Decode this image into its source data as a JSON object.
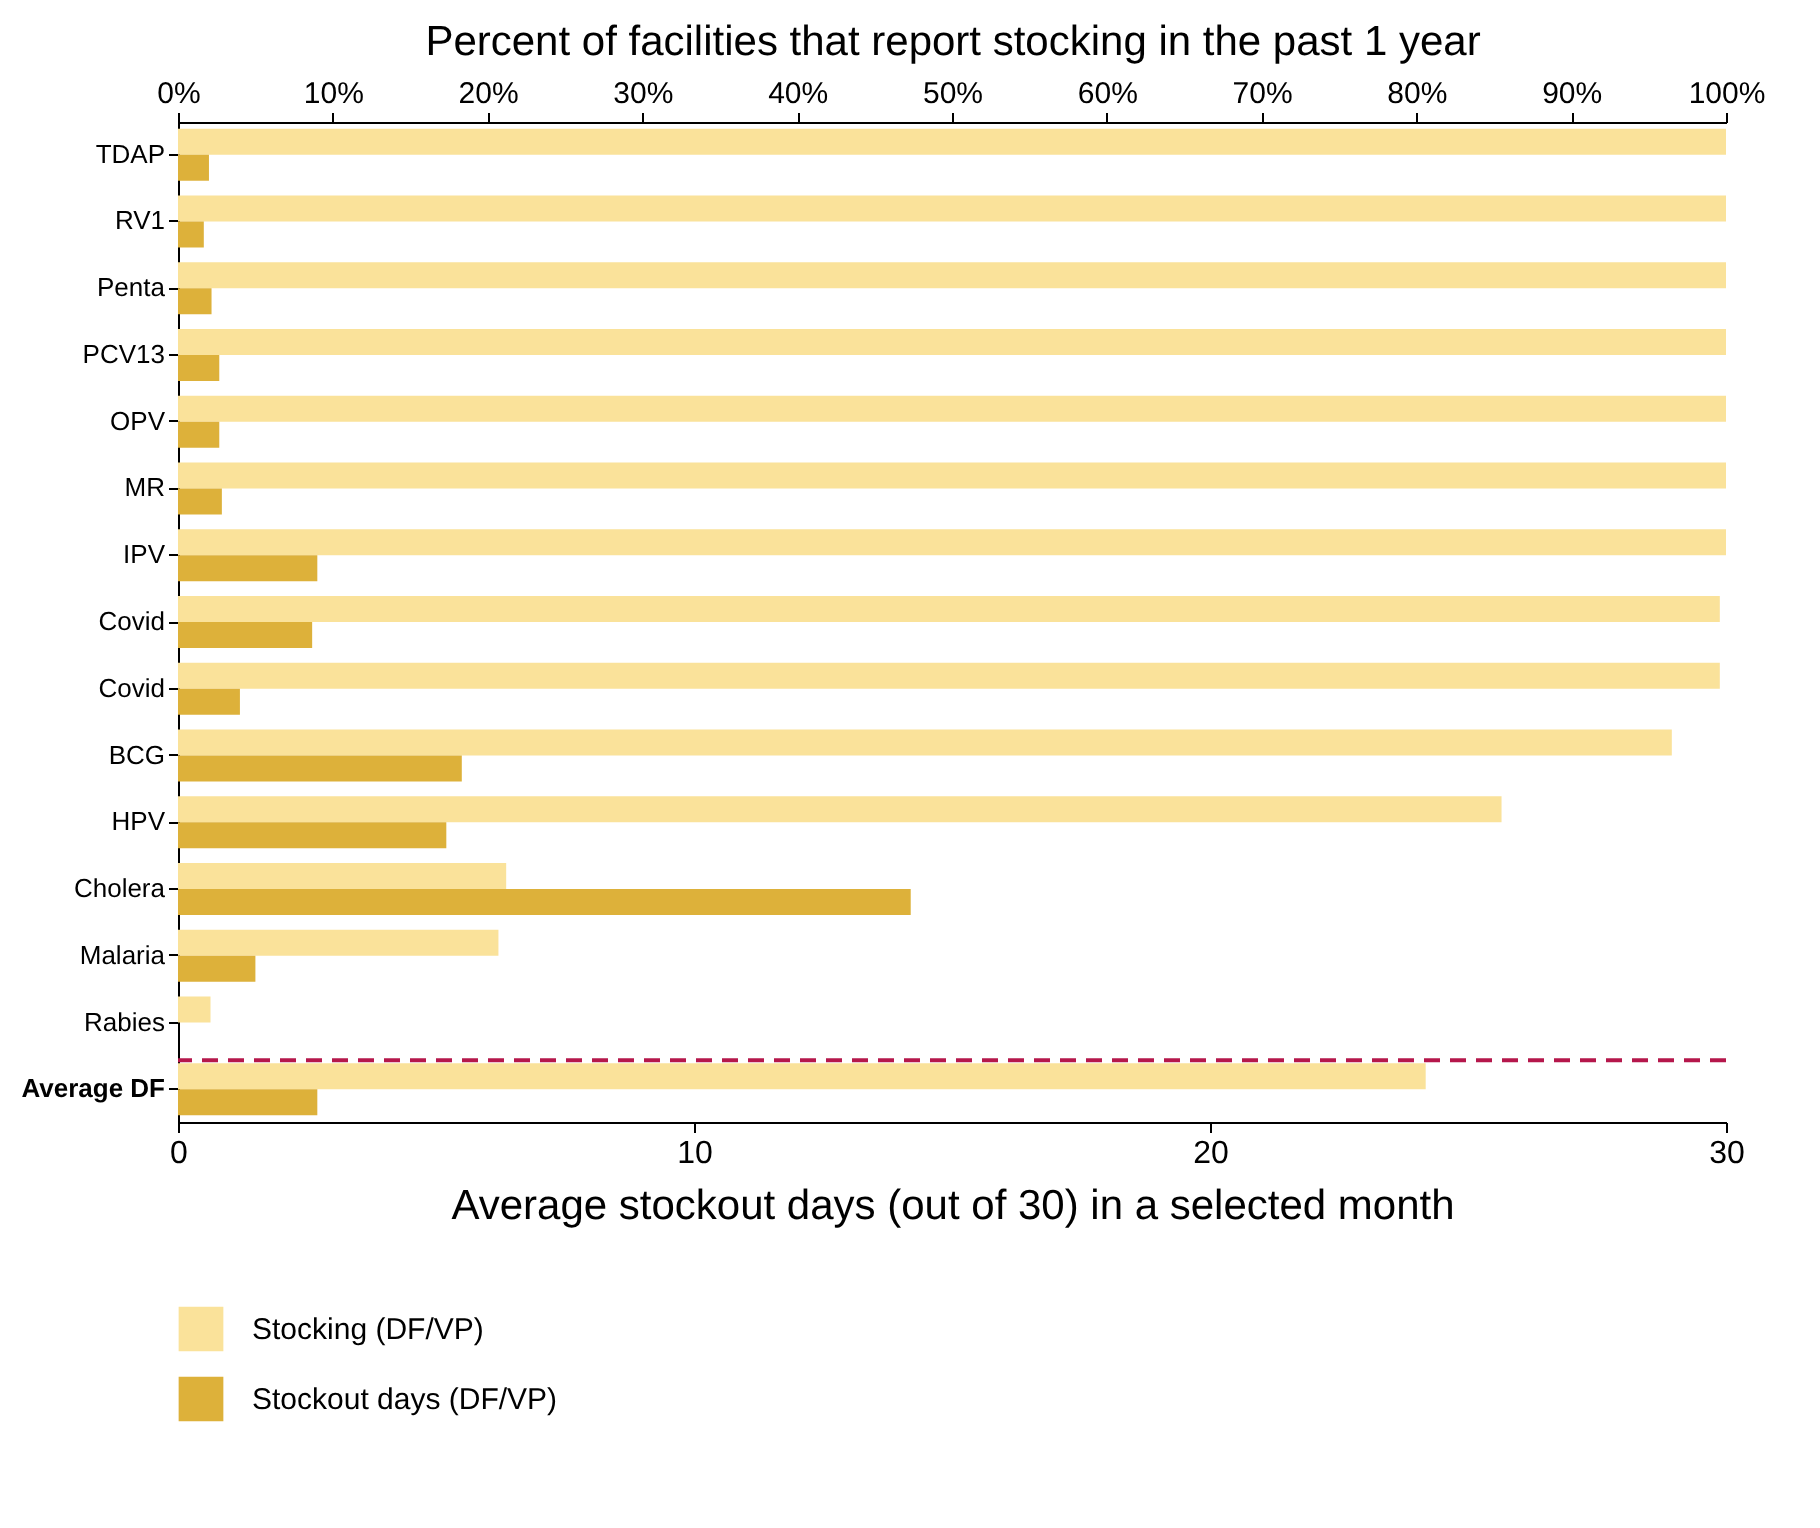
{
  "chart_data": {
    "type": "bar",
    "orientation": "horizontal",
    "categories": [
      "TDAP",
      "RV1",
      "Penta",
      "PCV13",
      "OPV",
      "MR",
      "IPV",
      "Covid",
      "Covid",
      "BCG",
      "HPV",
      "Cholera",
      "Malaria",
      "Rabies",
      "Average DF"
    ],
    "series": [
      {
        "name": "Stocking (DF/VP)",
        "color": "#fae29a",
        "axis": "x2",
        "values": [
          100,
          100,
          100,
          100,
          100,
          100,
          100,
          99.6,
          99.6,
          96.5,
          85.5,
          21.2,
          20.7,
          2.1,
          80.6
        ]
      },
      {
        "name": "Stockout days (DF/VP)",
        "color": "#ddb13a",
        "values": [
          0.6,
          0.5,
          0.65,
          0.8,
          0.8,
          0.85,
          2.7,
          2.6,
          1.2,
          5.5,
          5.2,
          14.2,
          1.5,
          0,
          2.7
        ]
      }
    ],
    "xlabel": "Average stockout days (out of 30) in a selected month",
    "xlim": [
      0,
      30
    ],
    "xticks": [
      0,
      10,
      20,
      30
    ],
    "x2label": "Percent of facilities that report stocking in the past 1 year",
    "x2lim": [
      0,
      100
    ],
    "x2ticks": [
      {
        "value": 0,
        "label": "0%"
      },
      {
        "value": 10,
        "label": "10%"
      },
      {
        "value": 20,
        "label": "20%"
      },
      {
        "value": 30,
        "label": "30%"
      },
      {
        "value": 40,
        "label": "40%"
      },
      {
        "value": 50,
        "label": "50%"
      },
      {
        "value": 60,
        "label": "60%"
      },
      {
        "value": 70,
        "label": "70%"
      },
      {
        "value": 80,
        "label": "80%"
      },
      {
        "value": 90,
        "label": "90%"
      },
      {
        "value": 100,
        "label": "100%"
      }
    ],
    "ref_lines": [
      {
        "axis": "y",
        "value": "Average DF",
        "color": "#b5174b",
        "line_style": "dashed"
      }
    ],
    "legend": "bottom",
    "grid": false
  }
}
